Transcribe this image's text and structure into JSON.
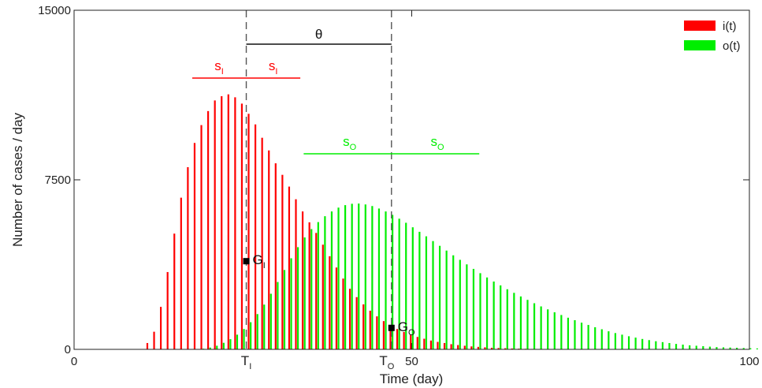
{
  "chart_data": {
    "type": "bar",
    "title": "",
    "xlabel": "Time (day)",
    "ylabel": "Number of cases / day",
    "xlim": [
      0,
      100
    ],
    "ylim": [
      0,
      15000
    ],
    "xticks": [
      "0",
      "50",
      "100"
    ],
    "yticks": [
      "0",
      "7500",
      "15000"
    ],
    "grid": false,
    "legend_position": "top-right",
    "colors": {
      "i": "#ff0000",
      "o": "#00ee00",
      "annotation": "#333333"
    },
    "x_start": 11,
    "series": [
      {
        "name": "i(t)",
        "color": "#ff0000",
        "values": [
          280,
          780,
          1880,
          3420,
          5120,
          6710,
          8060,
          9130,
          9920,
          10540,
          11010,
          11200,
          11280,
          11150,
          10870,
          10420,
          9950,
          9360,
          8800,
          8230,
          7720,
          7200,
          6640,
          6100,
          5620,
          5150,
          4630,
          4120,
          3620,
          3130,
          2680,
          2310,
          1990,
          1710,
          1460,
          1250,
          1060,
          900,
          770,
          650,
          550,
          470,
          390,
          330,
          280,
          230,
          190,
          160,
          130,
          110,
          90,
          70,
          60,
          50,
          40,
          30,
          25,
          20,
          15,
          10,
          8,
          6,
          5,
          4,
          3,
          2,
          2,
          1,
          1,
          1
        ]
      },
      {
        "name": "o(t)",
        "color": "#00ee00",
        "values": [
          0,
          0,
          0,
          0,
          0,
          0,
          0,
          10,
          30,
          80,
          160,
          290,
          450,
          650,
          900,
          1200,
          1560,
          1980,
          2460,
          2980,
          3510,
          4030,
          4520,
          4950,
          5320,
          5630,
          5890,
          6100,
          6270,
          6380,
          6440,
          6450,
          6410,
          6340,
          6230,
          6100,
          5950,
          5780,
          5600,
          5400,
          5200,
          5000,
          4790,
          4580,
          4370,
          4160,
          3960,
          3760,
          3560,
          3370,
          3180,
          3000,
          2830,
          2660,
          2500,
          2340,
          2190,
          2040,
          1900,
          1770,
          1640,
          1520,
          1400,
          1290,
          1180,
          1080,
          980,
          890,
          800,
          720,
          650,
          580,
          520,
          460,
          410,
          360,
          320,
          280,
          240,
          210,
          180,
          160,
          140,
          120,
          100,
          90,
          80,
          70,
          60,
          50,
          40
        ]
      }
    ],
    "annotations": {
      "theta_label": "θ",
      "s_i_left": {
        "base": "s",
        "sub": "I"
      },
      "s_i_right": {
        "base": "s",
        "sub": "I"
      },
      "s_o_left": {
        "base": "s",
        "sub": "O"
      },
      "s_o_right": {
        "base": "s",
        "sub": "O"
      },
      "t_i_label": {
        "base": "T",
        "sub": "I"
      },
      "t_o_label": {
        "base": "T",
        "sub": "O"
      },
      "g_i_label": {
        "base": "G",
        "sub": "I"
      },
      "g_o_label": {
        "base": "G",
        "sub": "O"
      },
      "T_I_day": 25.5,
      "T_O_day": 47,
      "theta_y": 13500,
      "s_i_span": [
        17.5,
        33.5
      ],
      "s_i_y": 12000,
      "s_o_span": [
        34,
        60
      ],
      "s_o_y": 8650,
      "G_I": [
        25.5,
        3900
      ],
      "G_O": [
        47,
        950
      ]
    }
  }
}
